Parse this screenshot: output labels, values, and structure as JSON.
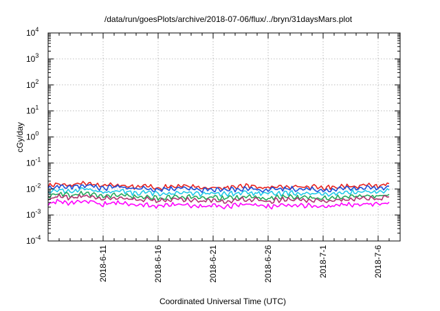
{
  "chart_data": {
    "type": "line",
    "title": "/data/run/goesPlots/archive/2018-07-06/flux/../bryn/31daysMars.plot",
    "xlabel": "Coordinated Universal Time (UTC)",
    "ylabel": "cGy/day",
    "yscale": "log",
    "ylim": [
      0.0001,
      10000
    ],
    "xlim": [
      "2018-06-06",
      "2018-07-08"
    ],
    "grid": true,
    "legend": "none",
    "x_ticks": [
      "2018-6-11",
      "2018-6-16",
      "2018-6-21",
      "2018-6-26",
      "2018-7-1",
      "2018-7-6"
    ],
    "y_ticks": [
      {
        "value": 0.0001,
        "base": "10",
        "exp": "-4"
      },
      {
        "value": 0.001,
        "base": "10",
        "exp": "-3"
      },
      {
        "value": 0.01,
        "base": "10",
        "exp": "-2"
      },
      {
        "value": 0.1,
        "base": "10",
        "exp": "-1"
      },
      {
        "value": 1,
        "base": "10",
        "exp": "0"
      },
      {
        "value": 10,
        "base": "10",
        "exp": "1"
      },
      {
        "value": 100,
        "base": "10",
        "exp": "2"
      },
      {
        "value": 1000,
        "base": "10",
        "exp": "3"
      },
      {
        "value": 10000,
        "base": "10",
        "exp": "4"
      }
    ],
    "series": [
      {
        "color": "#e8221e",
        "values": [
          0.013,
          0.016,
          0.014,
          0.017,
          0.016,
          0.013,
          0.015,
          0.014,
          0.012,
          0.013,
          0.011,
          0.012,
          0.013,
          0.012,
          0.011,
          0.012,
          0.011,
          0.012,
          0.013,
          0.012,
          0.011,
          0.012,
          0.013,
          0.012,
          0.012,
          0.011,
          0.012,
          0.013,
          0.013,
          0.014,
          0.013,
          0.016
        ]
      },
      {
        "color": "#1a4fd8",
        "values": [
          0.0105,
          0.013,
          0.0115,
          0.0135,
          0.013,
          0.0105,
          0.012,
          0.0115,
          0.0098,
          0.0105,
          0.0092,
          0.0098,
          0.0105,
          0.0098,
          0.009,
          0.0098,
          0.009,
          0.0098,
          0.0105,
          0.0098,
          0.009,
          0.0098,
          0.0105,
          0.0098,
          0.0098,
          0.009,
          0.0098,
          0.0105,
          0.0105,
          0.0112,
          0.0105,
          0.0128
        ]
      },
      {
        "color": "#20c9e8",
        "values": [
          0.0075,
          0.0092,
          0.008,
          0.0095,
          0.0092,
          0.0074,
          0.0085,
          0.008,
          0.0068,
          0.0074,
          0.0064,
          0.0068,
          0.0074,
          0.0068,
          0.0063,
          0.0068,
          0.0063,
          0.0068,
          0.0074,
          0.0068,
          0.0063,
          0.0068,
          0.0074,
          0.0068,
          0.0068,
          0.0063,
          0.0068,
          0.0074,
          0.0074,
          0.0079,
          0.0074,
          0.009
        ]
      },
      {
        "color": "#22a85a",
        "values": [
          0.0052,
          0.0064,
          0.0056,
          0.0066,
          0.0064,
          0.0051,
          0.0059,
          0.0056,
          0.0047,
          0.0051,
          0.0044,
          0.0047,
          0.0051,
          0.0047,
          0.0043,
          0.0047,
          0.0043,
          0.0047,
          0.0051,
          0.0047,
          0.0043,
          0.0047,
          0.0051,
          0.0047,
          0.0047,
          0.0043,
          0.0047,
          0.0051,
          0.0051,
          0.0055,
          0.0051,
          0.0062
        ]
      },
      {
        "color": "#b03070",
        "values": [
          0.0042,
          0.0052,
          0.0045,
          0.0053,
          0.0052,
          0.0041,
          0.0048,
          0.0045,
          0.0038,
          0.0041,
          0.0035,
          0.0038,
          0.0041,
          0.0038,
          0.0034,
          0.0038,
          0.0034,
          0.0038,
          0.0041,
          0.0038,
          0.0034,
          0.0038,
          0.0041,
          0.0038,
          0.0038,
          0.0034,
          0.0038,
          0.0041,
          0.0041,
          0.0044,
          0.0041,
          0.005
        ]
      },
      {
        "color": "#ff00ff",
        "values": [
          0.0026,
          0.0034,
          0.0028,
          0.0035,
          0.0033,
          0.0025,
          0.003,
          0.0028,
          0.0023,
          0.0025,
          0.0021,
          0.0023,
          0.0025,
          0.0023,
          0.0021,
          0.0023,
          0.0021,
          0.0023,
          0.0025,
          0.0023,
          0.0021,
          0.0023,
          0.0025,
          0.0023,
          0.0023,
          0.0021,
          0.0023,
          0.0025,
          0.0025,
          0.0027,
          0.0025,
          0.0031
        ]
      }
    ]
  }
}
